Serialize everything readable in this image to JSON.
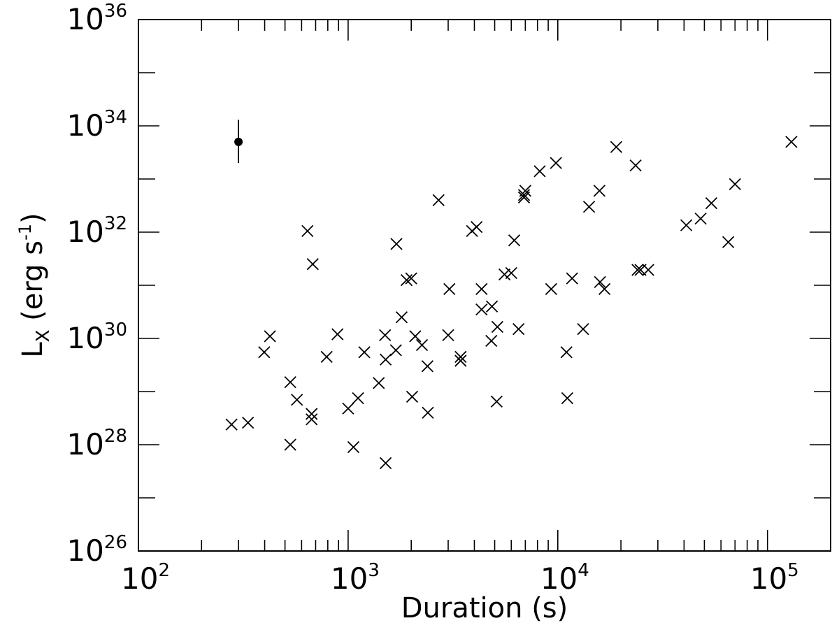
{
  "chart_data": {
    "type": "scatter",
    "xscale": "log",
    "yscale": "log",
    "xlim": [
      100,
      200000
    ],
    "ylim": [
      1e+26,
      1e+36
    ],
    "xlabel": "Duration (s)",
    "ylabel": {
      "base": "L",
      "subscript": "X",
      "unit_prefix": " (erg s",
      "unit_exponent": "-1",
      "unit_suffix": ")"
    },
    "x_ticks": [
      {
        "base": "10",
        "exp": "2",
        "value": 100
      },
      {
        "base": "10",
        "exp": "3",
        "value": 1000
      },
      {
        "base": "10",
        "exp": "4",
        "value": 10000
      },
      {
        "base": "10",
        "exp": "5",
        "value": 100000
      }
    ],
    "y_ticks": [
      {
        "base": "10",
        "exp": "26",
        "value": 1e+26
      },
      {
        "base": "10",
        "exp": "28",
        "value": 1e+28
      },
      {
        "base": "10",
        "exp": "30",
        "value": 1e+30
      },
      {
        "base": "10",
        "exp": "32",
        "value": 1e+32
      },
      {
        "base": "10",
        "exp": "34",
        "value": 1e+34
      },
      {
        "base": "10",
        "exp": "36",
        "value": 1e+36
      }
    ],
    "grid": false,
    "series": [
      {
        "marker": "x",
        "points": [
          [
            278,
            2.4e+28
          ],
          [
            333,
            2.6e+28
          ],
          [
            398,
            5.5e+29
          ],
          [
            424,
            1.1e+30
          ],
          [
            530,
            1.5e+29
          ],
          [
            530,
            1e+28
          ],
          [
            570,
            7e+28
          ],
          [
            640,
            1.05e+32
          ],
          [
            678,
            2.5e+31
          ],
          [
            670,
            3.8e+28
          ],
          [
            670,
            3e+28
          ],
          [
            790,
            4.5e+29
          ],
          [
            890,
            1.2e+30
          ],
          [
            1000,
            4.8e+28
          ],
          [
            1060,
            9e+27
          ],
          [
            1115,
            7.5e+28
          ],
          [
            1195,
            5.5e+29
          ],
          [
            1400,
            1.45e+29
          ],
          [
            1500,
            1.15e+30
          ],
          [
            1510,
            4e+29
          ],
          [
            1510,
            4.5e+27
          ],
          [
            1690,
            6e+29
          ],
          [
            1700,
            6e+31
          ],
          [
            1800,
            2.5e+30
          ],
          [
            1900,
            1.25e+31
          ],
          [
            2000,
            1.35e+31
          ],
          [
            2020,
            8e+28
          ],
          [
            2090,
            1.1e+30
          ],
          [
            2250,
            7.5e+29
          ],
          [
            2390,
            3e+29
          ],
          [
            2400,
            4e+28
          ],
          [
            2700,
            4e+32
          ],
          [
            3000,
            1.15e+30
          ],
          [
            3040,
            8.5e+30
          ],
          [
            3440,
            4.5e+29
          ],
          [
            3440,
            3.8e+29
          ],
          [
            3900,
            1.05e+32
          ],
          [
            4100,
            1.25e+32
          ],
          [
            4330,
            8.5e+30
          ],
          [
            4330,
            3.5e+30
          ],
          [
            4820,
            9e+29
          ],
          [
            4850,
            4e+30
          ],
          [
            5110,
            6.5e+28
          ],
          [
            5150,
            1.65e+30
          ],
          [
            5570,
            1.6e+31
          ],
          [
            6000,
            1.7e+31
          ],
          [
            6200,
            7e+31
          ],
          [
            6500,
            1.5e+30
          ],
          [
            6900,
            4.5e+32
          ],
          [
            6900,
            5e+32
          ],
          [
            7000,
            6e+32
          ],
          [
            8200,
            1.4e+33
          ],
          [
            9300,
            8.5e+30
          ],
          [
            9800,
            2e+33
          ],
          [
            11000,
            5.5e+29
          ],
          [
            11100,
            7.5e+28
          ],
          [
            11700,
            1.35e+31
          ],
          [
            13200,
            1.5e+30
          ],
          [
            14100,
            3e+32
          ],
          [
            15800,
            6e+32
          ],
          [
            15900,
            1.15e+31
          ],
          [
            16700,
            8.5e+30
          ],
          [
            19000,
            4e+33
          ],
          [
            23500,
            1.8e+33
          ],
          [
            24000,
            1.95e+31
          ],
          [
            24800,
            1.95e+31
          ],
          [
            27000,
            1.95e+31
          ],
          [
            41000,
            1.35e+32
          ],
          [
            48000,
            1.8e+32
          ],
          [
            54000,
            3.5e+32
          ],
          [
            65000,
            6.5e+31
          ],
          [
            70000,
            8e+32
          ],
          [
            130000,
            5e+33
          ]
        ]
      },
      {
        "marker": "circle-errorbar",
        "points": [
          {
            "x": 300,
            "y": 5e+33,
            "y_low": 2e+33,
            "y_high": 1.3e+34
          }
        ]
      }
    ]
  }
}
